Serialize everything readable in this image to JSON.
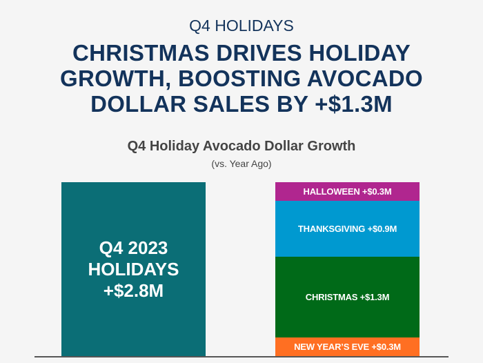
{
  "header": {
    "kicker": "Q4 HOLIDAYS",
    "headline_lines": [
      "CHRISTMAS DRIVES HOLIDAY",
      "GROWTH, BOOSTING AVOCADO",
      "DOLLAR SALES BY +$1.3M"
    ]
  },
  "chart_data": {
    "type": "bar",
    "title": "Q4 Holiday Avocado Dollar Growth",
    "subtitle": "(vs. Year Ago)",
    "unit": "$M",
    "ylim": [
      0,
      2.8
    ],
    "grid": false,
    "total_bar": {
      "label_lines": [
        "Q4 2023",
        "HOLIDAYS",
        "+$2.8M"
      ],
      "value": 2.8,
      "color": "#0b6e76"
    },
    "stacked_bar": {
      "segments": [
        {
          "name": "NEW YEAR'S EVE",
          "label": "NEW YEAR’S EVE +$0.3M",
          "value": 0.3,
          "color": "#ff6f22"
        },
        {
          "name": "CHRISTMAS",
          "label": "CHRISTMAS +$1.3M",
          "value": 1.3,
          "color": "#006a18"
        },
        {
          "name": "THANKSGIVING",
          "label": "THANKSGIVING +$0.9M",
          "value": 0.9,
          "color": "#0099d0"
        },
        {
          "name": "HALLOWEEN",
          "label": "HALLOWEEN +$0.3M",
          "value": 0.3,
          "color": "#b0268f"
        }
      ]
    }
  }
}
